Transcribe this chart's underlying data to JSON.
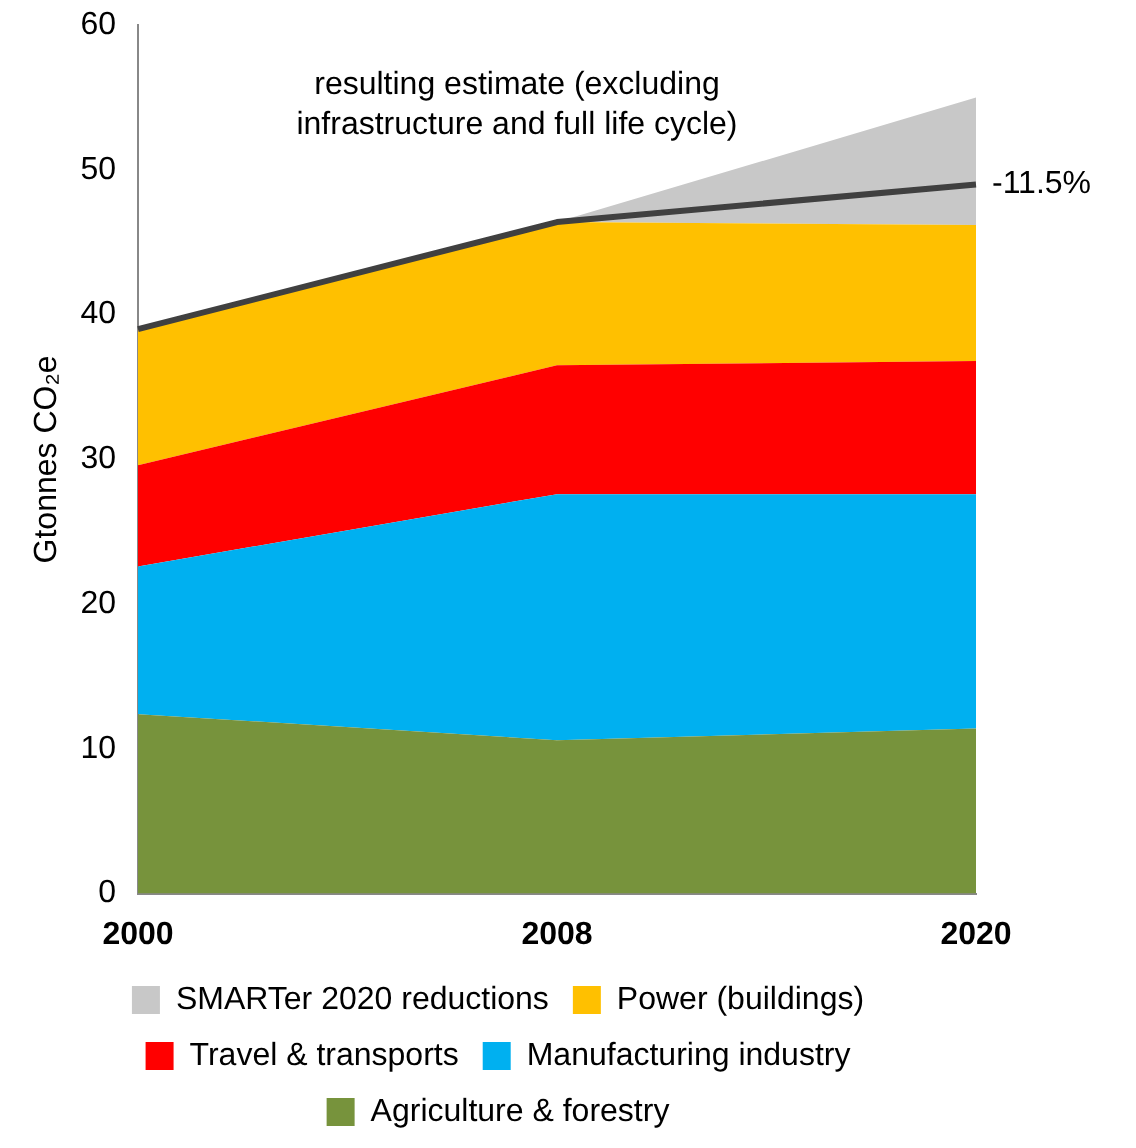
{
  "chart_data": {
    "type": "area",
    "stacked": true,
    "ylabel": "Gtonnes CO₂e",
    "categories": [
      "2000",
      "2008",
      "2020"
    ],
    "ylim": [
      0,
      60
    ],
    "yticks": [
      0,
      10,
      20,
      30,
      40,
      50,
      60
    ],
    "grid": false,
    "legend": "bottom",
    "marker": "none",
    "series": [
      {
        "name": "Agriculture & forestry",
        "color": "#77933c",
        "values": [
          12.4,
          10.6,
          11.4
        ]
      },
      {
        "name": "Manufacturing industry",
        "color": "#00b0f0",
        "values": [
          10.2,
          17.0,
          16.2
        ]
      },
      {
        "name": "Travel & transports",
        "color": "#ff0000",
        "values": [
          7.0,
          8.9,
          9.2
        ]
      },
      {
        "name": "Power (buildings)",
        "color": "#ffc000",
        "values": [
          9.4,
          9.9,
          9.4
        ]
      },
      {
        "name": "SMARTer 2020 reductions",
        "color": "#c8c8c8",
        "values": [
          0,
          0,
          8.8
        ]
      },
      {
        "type": "line",
        "color": "#404040",
        "values": [
          39.0,
          46.4,
          49.0
        ]
      }
    ],
    "annotations": [
      "resulting estimate (excluding infrastructure and full life cycle)",
      {
        "text": "-11.5%",
        "x": "2020",
        "y": 49
      }
    ]
  }
}
